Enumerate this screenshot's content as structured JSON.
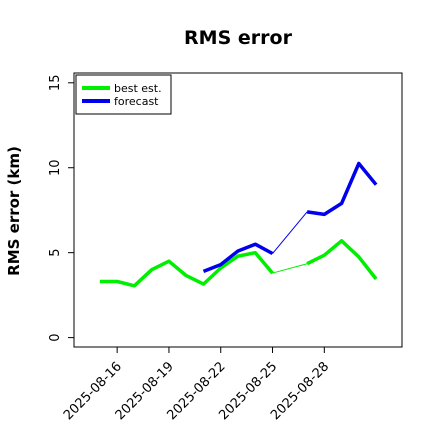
{
  "chart_data": {
    "type": "line",
    "title": "RMS error",
    "xlabel": "",
    "ylabel": "RMS error (km)",
    "ylim": [
      0,
      15
    ],
    "yticks": [
      0,
      5,
      10,
      15
    ],
    "xticks": [
      "2025-08-16",
      "2025-08-19",
      "2025-08-22",
      "2025-08-25",
      "2025-08-28"
    ],
    "xlim": [
      "2025-08-13T12:00",
      "2025-09-01T12:00"
    ],
    "legend_position": "top-left",
    "grid": false,
    "series": [
      {
        "name": "best est.",
        "color": "#00ee00",
        "segments": [
          [
            {
              "x": "2025-08-15",
              "y": 3.3
            },
            {
              "x": "2025-08-16",
              "y": 3.3
            },
            {
              "x": "2025-08-17",
              "y": 3.05
            },
            {
              "x": "2025-08-18",
              "y": 4.0
            },
            {
              "x": "2025-08-19",
              "y": 4.5
            },
            {
              "x": "2025-08-20",
              "y": 3.65
            },
            {
              "x": "2025-08-21",
              "y": 3.15
            },
            {
              "x": "2025-08-22",
              "y": 4.1
            },
            {
              "x": "2025-08-23",
              "y": 4.8
            },
            {
              "x": "2025-08-24",
              "y": 5.0
            },
            {
              "x": "2025-08-25",
              "y": 3.8
            }
          ],
          [
            {
              "x": "2025-08-27",
              "y": 4.35
            },
            {
              "x": "2025-08-28",
              "y": 4.85
            },
            {
              "x": "2025-08-29",
              "y": 5.7
            },
            {
              "x": "2025-08-30",
              "y": 4.75
            },
            {
              "x": "2025-08-31",
              "y": 3.45
            }
          ]
        ]
      },
      {
        "name": "forecast",
        "color": "#0000ee",
        "segments": [
          [
            {
              "x": "2025-08-21",
              "y": 3.9
            },
            {
              "x": "2025-08-22",
              "y": 4.3
            },
            {
              "x": "2025-08-23",
              "y": 5.1
            },
            {
              "x": "2025-08-24",
              "y": 5.5
            },
            {
              "x": "2025-08-25",
              "y": 4.95
            }
          ],
          [
            {
              "x": "2025-08-27",
              "y": 7.4
            },
            {
              "x": "2025-08-28",
              "y": 7.25
            },
            {
              "x": "2025-08-29",
              "y": 7.9
            },
            {
              "x": "2025-08-30",
              "y": 10.25
            },
            {
              "x": "2025-08-31",
              "y": 9.0
            }
          ]
        ]
      }
    ]
  }
}
